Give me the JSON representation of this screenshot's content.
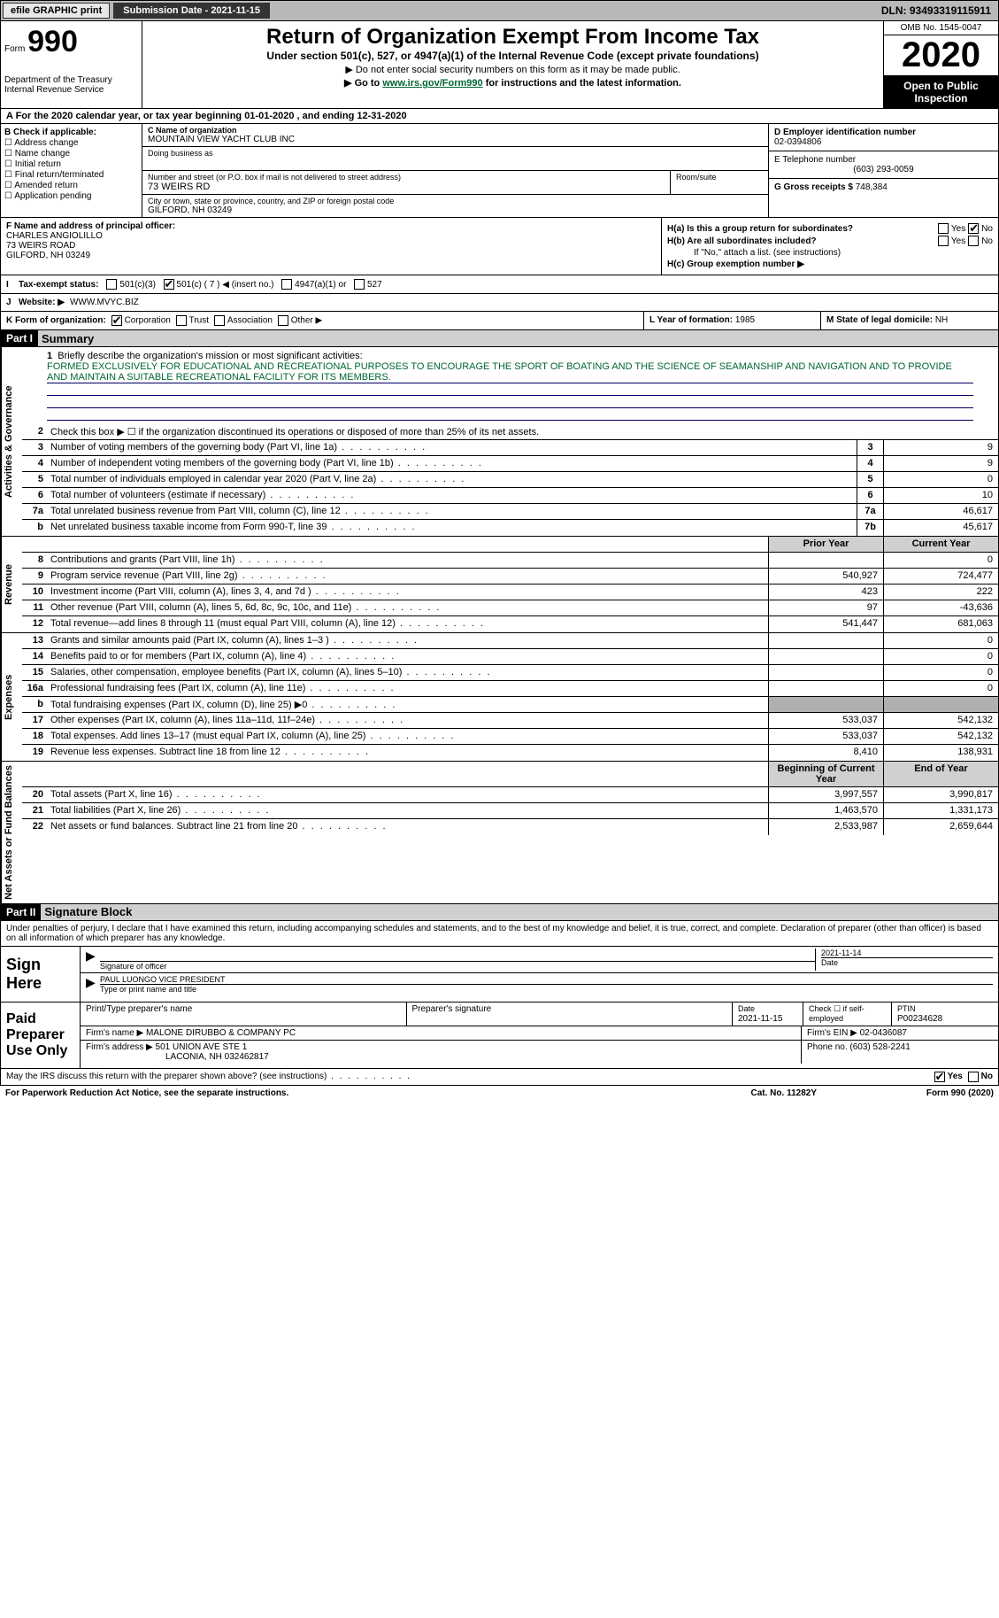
{
  "topbar": {
    "efile": "efile GRAPHIC print",
    "sub_label": "Submission Date - 2021-11-15",
    "dln": "DLN: 93493319115911"
  },
  "header": {
    "form_word": "Form",
    "form_no": "990",
    "dept": "Department of the Treasury\nInternal Revenue Service",
    "title": "Return of Organization Exempt From Income Tax",
    "subtitle": "Under section 501(c), 527, or 4947(a)(1) of the Internal Revenue Code (except private foundations)",
    "note1": "▶ Do not enter social security numbers on this form as it may be made public.",
    "note2_pre": "▶ Go to ",
    "note2_link": "www.irs.gov/Form990",
    "note2_post": " for instructions and the latest information.",
    "omb": "OMB No. 1545-0047",
    "year": "2020",
    "inspection": "Open to Public Inspection"
  },
  "line_a": "A For the 2020 calendar year, or tax year beginning 01-01-2020   , and ending 12-31-2020",
  "section_b": {
    "title": "B Check if applicable:",
    "opts": [
      "Address change",
      "Name change",
      "Initial return",
      "Final return/terminated",
      "Amended return",
      "Application pending"
    ]
  },
  "section_c": {
    "name_lbl": "C Name of organization",
    "name": "MOUNTAIN VIEW YACHT CLUB INC",
    "dba_lbl": "Doing business as",
    "addr_lbl": "Number and street (or P.O. box if mail is not delivered to street address)",
    "room_lbl": "Room/suite",
    "addr": "73 WEIRS RD",
    "city_lbl": "City or town, state or province, country, and ZIP or foreign postal code",
    "city": "GILFORD, NH  03249"
  },
  "section_d": {
    "ein_lbl": "D Employer identification number",
    "ein": "02-0394806",
    "tel_lbl": "E Telephone number",
    "tel": "(603) 293-0059",
    "gross_lbl": "G Gross receipts $",
    "gross": "748,384"
  },
  "section_f": {
    "lbl": "F Name and address of principal officer:",
    "name": "CHARLES ANGIOLILLO",
    "addr1": "73 WEIRS ROAD",
    "addr2": "GILFORD, NH  03249"
  },
  "section_h": {
    "ha": "H(a) Is this a group return for subordinates?",
    "hb": "H(b) Are all subordinates included?",
    "hb_note": "If \"No,\" attach a list. (see instructions)",
    "hc": "H(c) Group exemption number ▶",
    "yes": "Yes",
    "no": "No"
  },
  "tax_status": {
    "lbl": "Tax-exempt status:",
    "o1": "501(c)(3)",
    "o2": "501(c) ( 7 ) ◀ (insert no.)",
    "o3": "4947(a)(1) or",
    "o4": "527"
  },
  "section_j": {
    "lbl": "J",
    "website_lbl": "Website: ▶",
    "website": "WWW.MVYC.BIZ"
  },
  "section_k": {
    "lbl": "K Form of organization:",
    "o1": "Corporation",
    "o2": "Trust",
    "o3": "Association",
    "o4": "Other ▶"
  },
  "section_l": {
    "lbl": "L Year of formation:",
    "val": "1985"
  },
  "section_m": {
    "lbl": "M State of legal domicile:",
    "val": "NH"
  },
  "part1": {
    "hdr": "Part I",
    "title": "Summary",
    "l1": "Briefly describe the organization's mission or most significant activities:",
    "mission": "FORMED EXCLUSIVELY FOR EDUCATIONAL AND RECREATIONAL PURPOSES TO ENCOURAGE THE SPORT OF BOATING AND THE SCIENCE OF SEAMANSHIP AND NAVIGATION AND TO PROVIDE AND MAINTAIN A SUITABLE RECREATIONAL FACILITY FOR ITS MEMBERS.",
    "l2": "Check this box ▶ ☐  if the organization discontinued its operations or disposed of more than 25% of its net assets.",
    "rows_gov": [
      {
        "n": "3",
        "t": "Number of voting members of the governing body (Part VI, line 1a)",
        "b": "3",
        "v": "9"
      },
      {
        "n": "4",
        "t": "Number of independent voting members of the governing body (Part VI, line 1b)",
        "b": "4",
        "v": "9"
      },
      {
        "n": "5",
        "t": "Total number of individuals employed in calendar year 2020 (Part V, line 2a)",
        "b": "5",
        "v": "0"
      },
      {
        "n": "6",
        "t": "Total number of volunteers (estimate if necessary)",
        "b": "6",
        "v": "10"
      },
      {
        "n": "7a",
        "t": "Total unrelated business revenue from Part VIII, column (C), line 12",
        "b": "7a",
        "v": "46,617"
      },
      {
        "n": "b",
        "t": "Net unrelated business taxable income from Form 990-T, line 39",
        "b": "7b",
        "v": "45,617"
      }
    ],
    "col_hdr_prior": "Prior Year",
    "col_hdr_curr": "Current Year",
    "rows_rev": [
      {
        "n": "8",
        "t": "Contributions and grants (Part VIII, line 1h)",
        "p": "",
        "c": "0"
      },
      {
        "n": "9",
        "t": "Program service revenue (Part VIII, line 2g)",
        "p": "540,927",
        "c": "724,477"
      },
      {
        "n": "10",
        "t": "Investment income (Part VIII, column (A), lines 3, 4, and 7d )",
        "p": "423",
        "c": "222"
      },
      {
        "n": "11",
        "t": "Other revenue (Part VIII, column (A), lines 5, 6d, 8c, 9c, 10c, and 11e)",
        "p": "97",
        "c": "-43,636"
      },
      {
        "n": "12",
        "t": "Total revenue—add lines 8 through 11 (must equal Part VIII, column (A), line 12)",
        "p": "541,447",
        "c": "681,063"
      }
    ],
    "rows_exp": [
      {
        "n": "13",
        "t": "Grants and similar amounts paid (Part IX, column (A), lines 1–3 )",
        "p": "",
        "c": "0"
      },
      {
        "n": "14",
        "t": "Benefits paid to or for members (Part IX, column (A), line 4)",
        "p": "",
        "c": "0"
      },
      {
        "n": "15",
        "t": "Salaries, other compensation, employee benefits (Part IX, column (A), lines 5–10)",
        "p": "",
        "c": "0"
      },
      {
        "n": "16a",
        "t": "Professional fundraising fees (Part IX, column (A), line 11e)",
        "p": "",
        "c": "0"
      },
      {
        "n": "b",
        "t": "Total fundraising expenses (Part IX, column (D), line 25) ▶0",
        "p": "GREY",
        "c": "GREY"
      },
      {
        "n": "17",
        "t": "Other expenses (Part IX, column (A), lines 11a–11d, 11f–24e)",
        "p": "533,037",
        "c": "542,132"
      },
      {
        "n": "18",
        "t": "Total expenses. Add lines 13–17 (must equal Part IX, column (A), line 25)",
        "p": "533,037",
        "c": "542,132"
      },
      {
        "n": "19",
        "t": "Revenue less expenses. Subtract line 18 from line 12",
        "p": "8,410",
        "c": "138,931"
      }
    ],
    "col_hdr_beg": "Beginning of Current Year",
    "col_hdr_end": "End of Year",
    "rows_net": [
      {
        "n": "20",
        "t": "Total assets (Part X, line 16)",
        "p": "3,997,557",
        "c": "3,990,817"
      },
      {
        "n": "21",
        "t": "Total liabilities (Part X, line 26)",
        "p": "1,463,570",
        "c": "1,331,173"
      },
      {
        "n": "22",
        "t": "Net assets or fund balances. Subtract line 21 from line 20",
        "p": "2,533,987",
        "c": "2,659,644"
      }
    ],
    "vtab_gov": "Activities & Governance",
    "vtab_rev": "Revenue",
    "vtab_exp": "Expenses",
    "vtab_net": "Net Assets or Fund Balances"
  },
  "part2": {
    "hdr": "Part II",
    "title": "Signature Block",
    "decl": "Under penalties of perjury, I declare that I have examined this return, including accompanying schedules and statements, and to the best of my knowledge and belief, it is true, correct, and complete. Declaration of preparer (other than officer) is based on all information of which preparer has any knowledge."
  },
  "sign": {
    "lbl": "Sign Here",
    "sig_lbl": "Signature of officer",
    "date_lbl": "Date",
    "date": "2021-11-14",
    "name": "PAUL LUONGO VICE PRESIDENT",
    "name_lbl": "Type or print name and title"
  },
  "preparer": {
    "lbl": "Paid Preparer Use Only",
    "c1": "Print/Type preparer's name",
    "c2": "Preparer's signature",
    "c3_lbl": "Date",
    "c3": "2021-11-15",
    "c4": "Check ☐ if self-employed",
    "c5_lbl": "PTIN",
    "c5": "P00234628",
    "firm_lbl": "Firm's name   ▶",
    "firm": "MALONE DIRUBBO & COMPANY PC",
    "ein_lbl": "Firm's EIN ▶",
    "ein": "02-0436087",
    "addr_lbl": "Firm's address ▶",
    "addr": "501 UNION AVE STE 1",
    "addr2": "LACONIA, NH  032462817",
    "phone_lbl": "Phone no.",
    "phone": "(603) 528-2241"
  },
  "footer": {
    "discuss": "May the IRS discuss this return with the preparer shown above? (see instructions)",
    "yes": "Yes",
    "no": "No",
    "pra": "For Paperwork Reduction Act Notice, see the separate instructions.",
    "cat": "Cat. No. 11282Y",
    "form": "Form 990 (2020)"
  }
}
